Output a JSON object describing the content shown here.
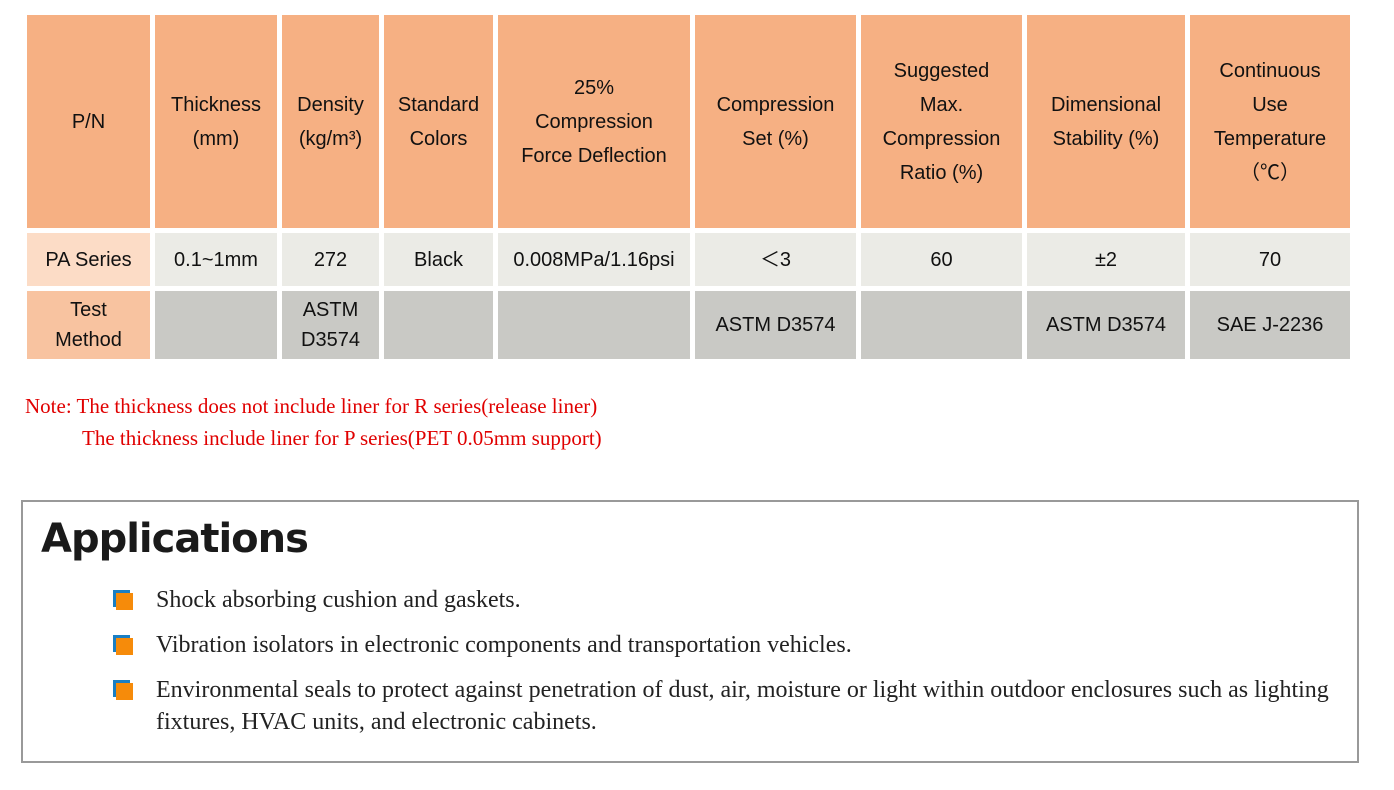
{
  "table": {
    "headers": [
      "P/N",
      "Thickness\n(mm)",
      "Density\n(kg/m³)",
      "Standard\nColors",
      "25%\nCompression\nForce Deflection",
      "Compression\nSet (%)",
      "Suggested\nMax.\nCompression\nRatio (%)",
      "Dimensional\nStability (%)",
      "Continuous\nUse\nTemperature\n（℃）"
    ],
    "rows": [
      [
        "PA Series",
        "0.1~1mm",
        "272",
        "Black",
        "0.008MPa/1.16psi",
        "＜3",
        "60",
        "±2",
        "70"
      ],
      [
        "Test\nMethod",
        "",
        "ASTM\nD3574",
        "",
        "",
        "ASTM D3574",
        "",
        "ASTM D3574",
        "SAE J-2236"
      ]
    ],
    "colors": {
      "header": "#f6b083",
      "row_label": "#fcdcc6",
      "test_label": "#f8c3a0",
      "row": "#ebebe6",
      "test_row": "#c9c9c5"
    }
  },
  "note": {
    "line1": "Note: The thickness does not include liner for R series(release liner)",
    "line2": "The thickness include liner for P series(PET 0.05mm support)",
    "color": "#e00000"
  },
  "applications": {
    "title": "Applications",
    "items": [
      "Shock absorbing cushion and gaskets.",
      "Vibration isolators in electronic components and transportation vehicles.",
      "Environmental seals to protect against penetration of dust, air, moisture or light within outdoor enclosures such as lighting fixtures, HVAC units, and electronic cabinets."
    ],
    "bullet_icon": "orange-square-bullet"
  }
}
